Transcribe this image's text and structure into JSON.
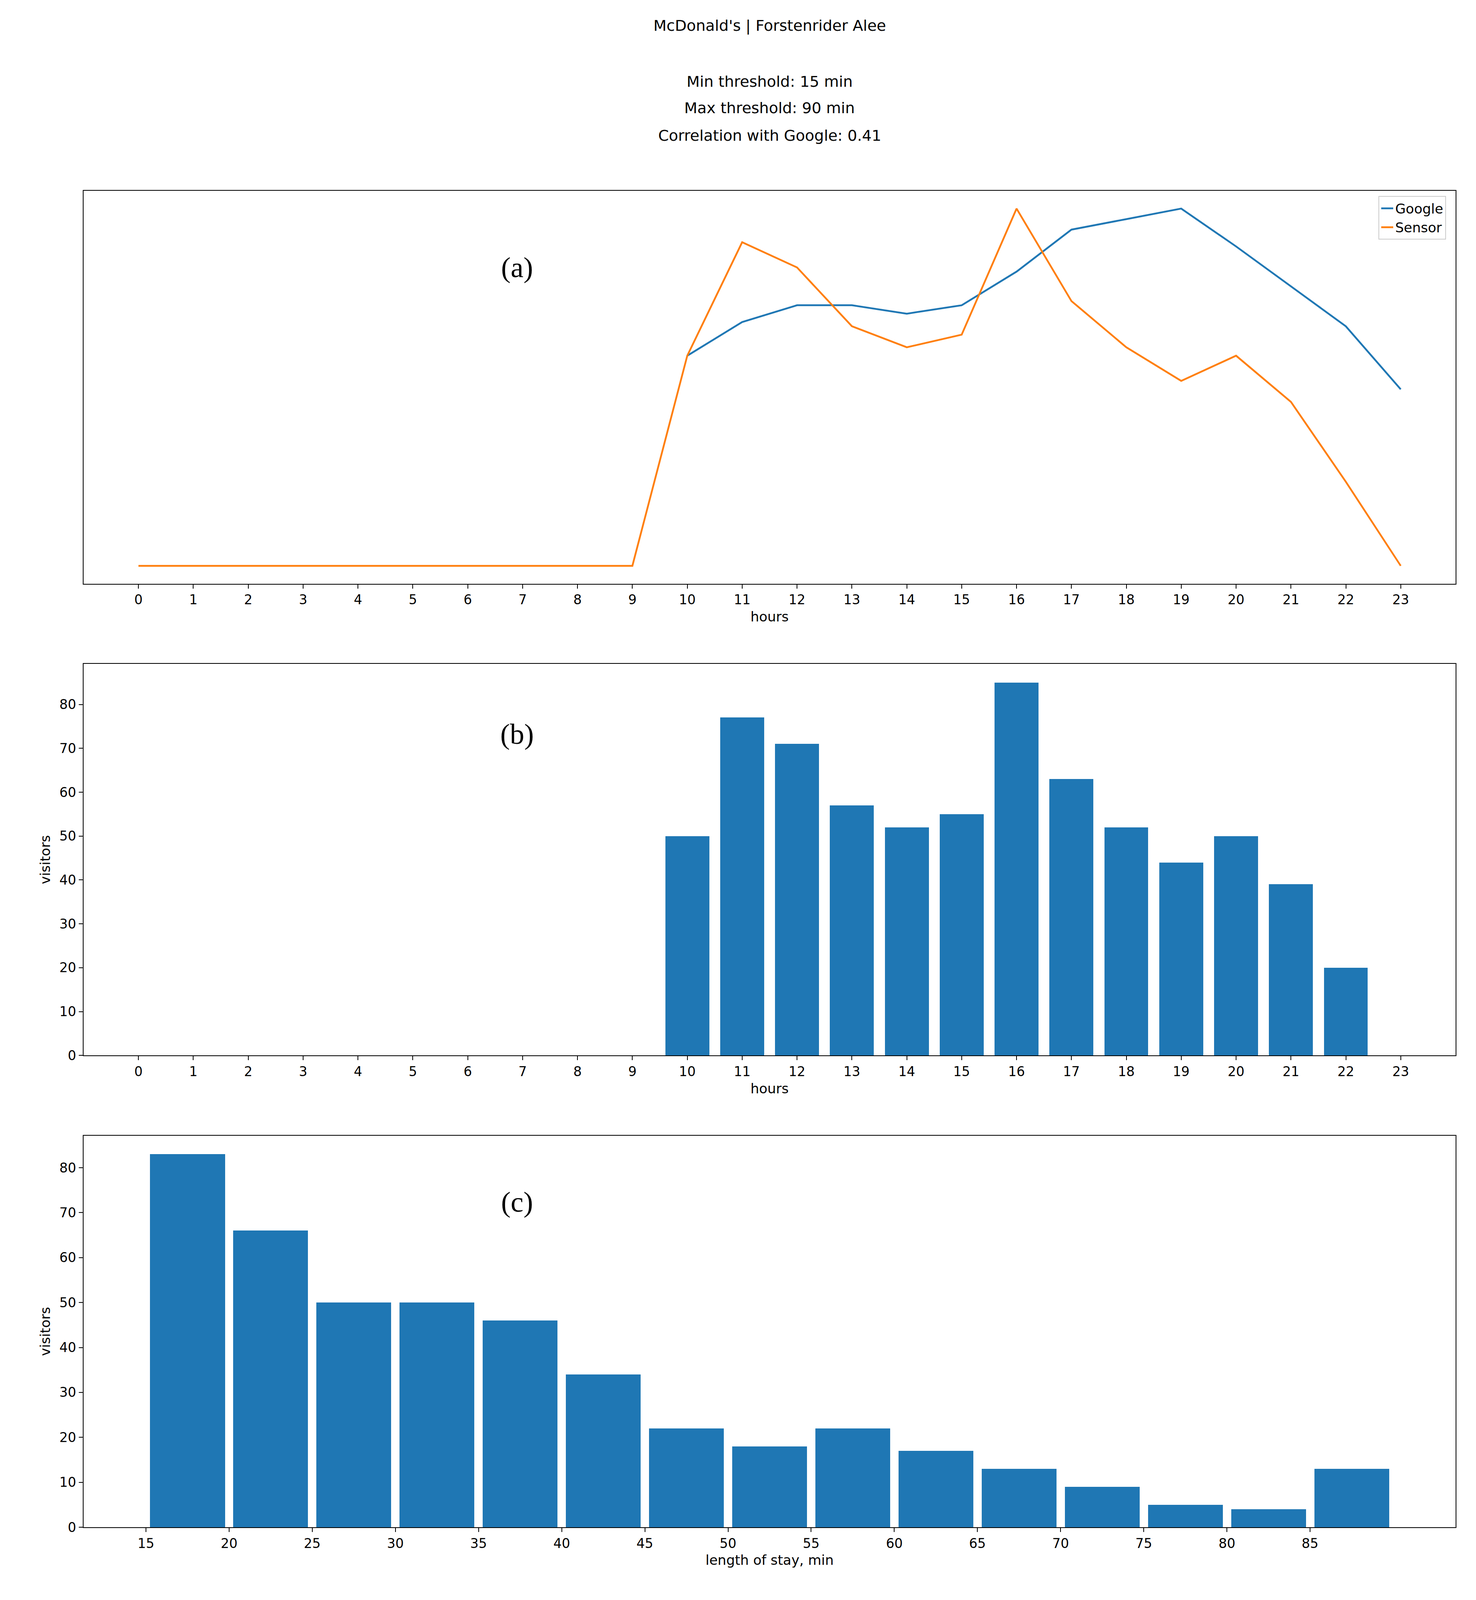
{
  "chart_data": [
    {
      "type": "line",
      "title": "McDonald's | Forstenrider Alee",
      "subtitle": "Min threshold: 15 min\nMax threshold: 90 min\nCorrelation with Google: 0.41",
      "annotation": "(a)",
      "x_label": "hours",
      "x": [
        0,
        1,
        2,
        3,
        4,
        5,
        6,
        7,
        8,
        9,
        10,
        11,
        12,
        13,
        14,
        15,
        16,
        17,
        18,
        19,
        20,
        21,
        22,
        23
      ],
      "series": [
        {
          "name": "Google",
          "color": "#1f77b4",
          "values": [
            null,
            null,
            null,
            null,
            null,
            null,
            null,
            null,
            null,
            null,
            50,
            58,
            62,
            62,
            60,
            62,
            70,
            80,
            82.5,
            85,
            76,
            66.5,
            57,
            42
          ]
        },
        {
          "name": "Sensor",
          "color": "#ff7f0e",
          "values": [
            0,
            0,
            0,
            0,
            0,
            0,
            0,
            0,
            0,
            0,
            50,
            77,
            71,
            57,
            52,
            55,
            85,
            63,
            52,
            44,
            50,
            39,
            20,
            0
          ]
        }
      ],
      "xlim": [
        -1,
        24
      ],
      "xticks": [
        0,
        1,
        2,
        3,
        4,
        5,
        6,
        7,
        8,
        9,
        10,
        11,
        12,
        13,
        14,
        15,
        16,
        17,
        18,
        19,
        20,
        21,
        22,
        23
      ],
      "ylim": [
        -4.25,
        89.25
      ],
      "tick_labels": "x",
      "legend": "upper right",
      "grid": false
    },
    {
      "type": "bar",
      "annotation": "(b)",
      "x_label": "hours",
      "y_label": "visitors",
      "x": [
        0,
        1,
        2,
        3,
        4,
        5,
        6,
        7,
        8,
        9,
        10,
        11,
        12,
        13,
        14,
        15,
        16,
        17,
        18,
        19,
        20,
        21,
        22,
        23
      ],
      "values": [
        0,
        0,
        0,
        0,
        0,
        0,
        0,
        0,
        0,
        0,
        50,
        77,
        71,
        57,
        52,
        55,
        85,
        63,
        52,
        44,
        50,
        39,
        20,
        0
      ],
      "color": "#1f77b4",
      "xlim": [
        -1,
        24
      ],
      "xticks": [
        0,
        1,
        2,
        3,
        4,
        5,
        6,
        7,
        8,
        9,
        10,
        11,
        12,
        13,
        14,
        15,
        16,
        17,
        18,
        19,
        20,
        21,
        22,
        23
      ],
      "ylim": [
        0,
        89.25
      ],
      "yticks": [
        0,
        10,
        20,
        30,
        40,
        50,
        60,
        70,
        80
      ],
      "grid": false
    },
    {
      "type": "histogram",
      "annotation": "(c)",
      "x_label": "length of stay, min",
      "y_label": "visitors",
      "bins": [
        15,
        20,
        25,
        30,
        35,
        40,
        45,
        50,
        55,
        60,
        65,
        70,
        75,
        80,
        85,
        90
      ],
      "values": [
        83,
        66,
        50,
        50,
        46,
        34,
        22,
        18,
        22,
        17,
        13,
        9,
        5,
        4,
        13
      ],
      "color": "#1f77b4",
      "xlim": [
        11.25,
        93.75
      ],
      "xticks": [
        15,
        20,
        25,
        30,
        35,
        40,
        45,
        50,
        55,
        60,
        65,
        70,
        75,
        80,
        85
      ],
      "ylim": [
        0,
        87.15
      ],
      "yticks": [
        0,
        10,
        20,
        30,
        40,
        50,
        60,
        70,
        80
      ],
      "grid": false
    }
  ]
}
